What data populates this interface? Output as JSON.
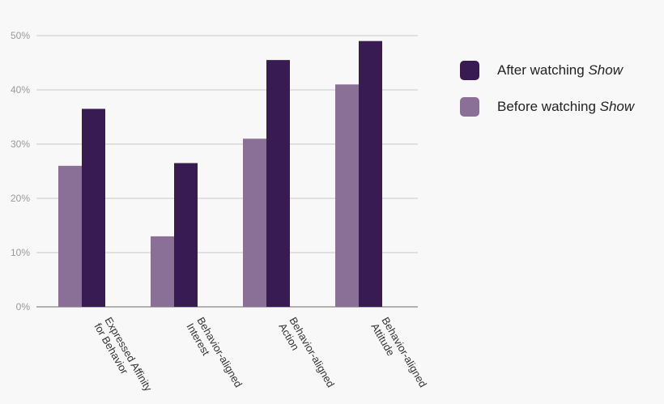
{
  "chart_data": {
    "type": "bar",
    "categories": [
      [
        "Expressed Affinity",
        "for Behavior"
      ],
      [
        "Behavior-aligned",
        "Interest"
      ],
      [
        "Behavior-aligned",
        "Action"
      ],
      [
        "Behavior-aligned",
        "Attitude"
      ]
    ],
    "series": [
      {
        "name_prefix": "Before watching ",
        "name_emph": "Show",
        "color": "#8a7096",
        "values": [
          26,
          13,
          31,
          41
        ]
      },
      {
        "name_prefix": "After watching ",
        "name_emph": "Show",
        "color": "#381b52",
        "values": [
          36.5,
          26.5,
          45.5,
          49
        ]
      }
    ],
    "legend_order": [
      1,
      0
    ],
    "ylim": [
      0,
      50
    ],
    "yticks": [
      0,
      10,
      20,
      30,
      40,
      50
    ],
    "ytick_suffix": "%",
    "grid": true,
    "legend_position": "right",
    "colors": {
      "grid": "#c8c8c8",
      "axis": "#9a9a9a",
      "background": "#f8f8f8"
    }
  }
}
